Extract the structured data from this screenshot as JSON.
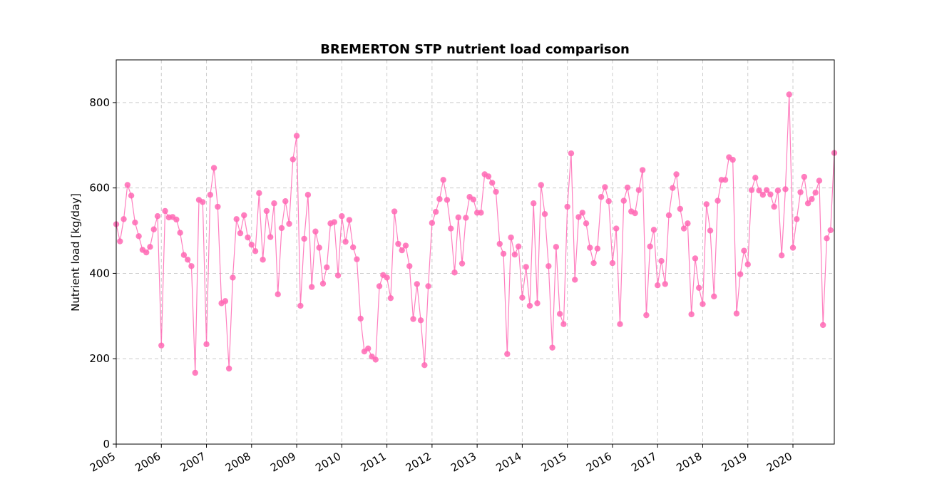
{
  "chart_data": {
    "type": "line",
    "title": "BREMERTON STP nutrient load comparison",
    "xlabel": "",
    "ylabel": "Nutrient load [kg/day]",
    "xlim": [
      "2005-01",
      "2020-12"
    ],
    "ylim": [
      0,
      900
    ],
    "yticks": [
      0,
      200,
      400,
      600,
      800
    ],
    "xticks": [
      "2005",
      "2006",
      "2007",
      "2008",
      "2009",
      "2010",
      "2011",
      "2012",
      "2013",
      "2014",
      "2015",
      "2016",
      "2017",
      "2018",
      "2019",
      "2020"
    ],
    "grid": true,
    "markers": true,
    "series": [
      {
        "color": "#ff69b4",
        "x": [
          "2005-01",
          "2005-02",
          "2005-03",
          "2005-04",
          "2005-05",
          "2005-06",
          "2005-07",
          "2005-08",
          "2005-09",
          "2005-10",
          "2005-11",
          "2005-12",
          "2006-01",
          "2006-02",
          "2006-03",
          "2006-04",
          "2006-05",
          "2006-06",
          "2006-07",
          "2006-08",
          "2006-09",
          "2006-10",
          "2006-11",
          "2006-12",
          "2007-01",
          "2007-02",
          "2007-03",
          "2007-04",
          "2007-05",
          "2007-06",
          "2007-07",
          "2007-08",
          "2007-09",
          "2007-10",
          "2007-11",
          "2007-12",
          "2008-01",
          "2008-02",
          "2008-03",
          "2008-04",
          "2008-05",
          "2008-06",
          "2008-07",
          "2008-08",
          "2008-09",
          "2008-10",
          "2008-11",
          "2008-12",
          "2009-01",
          "2009-02",
          "2009-03",
          "2009-04",
          "2009-05",
          "2009-06",
          "2009-07",
          "2009-08",
          "2009-09",
          "2009-10",
          "2009-11",
          "2009-12",
          "2010-01",
          "2010-02",
          "2010-03",
          "2010-04",
          "2010-05",
          "2010-06",
          "2010-07",
          "2010-08",
          "2010-09",
          "2010-10",
          "2010-11",
          "2010-12",
          "2011-01",
          "2011-02",
          "2011-03",
          "2011-04",
          "2011-05",
          "2011-06",
          "2011-07",
          "2011-08",
          "2011-09",
          "2011-10",
          "2011-11",
          "2011-12",
          "2012-01",
          "2012-02",
          "2012-03",
          "2012-04",
          "2012-05",
          "2012-06",
          "2012-07",
          "2012-08",
          "2012-09",
          "2012-10",
          "2012-11",
          "2012-12",
          "2013-01",
          "2013-02",
          "2013-03",
          "2013-04",
          "2013-05",
          "2013-06",
          "2013-07",
          "2013-08",
          "2013-09",
          "2013-10",
          "2013-11",
          "2013-12",
          "2014-01",
          "2014-02",
          "2014-03",
          "2014-04",
          "2014-05",
          "2014-06",
          "2014-07",
          "2014-08",
          "2014-09",
          "2014-10",
          "2014-11",
          "2014-12",
          "2015-01",
          "2015-02",
          "2015-03",
          "2015-04",
          "2015-05",
          "2015-06",
          "2015-07",
          "2015-08",
          "2015-09",
          "2015-10",
          "2015-11",
          "2015-12",
          "2016-01",
          "2016-02",
          "2016-03",
          "2016-04",
          "2016-05",
          "2016-06",
          "2016-07",
          "2016-08",
          "2016-09",
          "2016-10",
          "2016-11",
          "2016-12",
          "2017-01",
          "2017-02",
          "2017-03",
          "2017-04",
          "2017-05",
          "2017-06",
          "2017-07",
          "2017-08",
          "2017-09",
          "2017-10",
          "2017-11",
          "2017-12",
          "2018-01",
          "2018-02",
          "2018-03",
          "2018-04",
          "2018-05",
          "2018-06",
          "2018-07",
          "2018-08",
          "2018-09",
          "2018-10",
          "2018-11",
          "2018-12",
          "2019-01",
          "2019-02",
          "2019-03",
          "2019-04",
          "2019-05",
          "2019-06",
          "2019-07",
          "2019-08",
          "2019-09",
          "2019-10",
          "2019-11",
          "2019-12",
          "2020-01",
          "2020-02",
          "2020-03",
          "2020-04",
          "2020-05",
          "2020-06",
          "2020-07",
          "2020-08",
          "2020-09",
          "2020-10",
          "2020-11",
          "2020-12"
        ],
        "y": [
          515,
          475,
          527,
          607,
          582,
          519,
          487,
          455,
          449,
          462,
          503,
          534,
          231,
          546,
          531,
          532,
          526,
          495,
          443,
          432,
          417,
          167,
          572,
          567,
          234,
          584,
          647,
          556,
          330,
          335,
          177,
          390,
          527,
          494,
          536,
          484,
          467,
          452,
          588,
          432,
          546,
          485,
          564,
          351,
          506,
          569,
          516,
          667,
          722,
          324,
          481,
          584,
          368,
          498,
          460,
          376,
          414,
          517,
          520,
          395,
          534,
          474,
          525,
          461,
          433,
          294,
          217,
          224,
          205,
          198,
          370,
          396,
          390,
          342,
          545,
          469,
          454,
          465,
          417,
          293,
          375,
          290,
          185,
          370,
          518,
          544,
          574,
          619,
          572,
          505,
          402,
          531,
          423,
          530,
          579,
          573,
          542,
          542,
          632,
          627,
          612,
          591,
          469,
          446,
          211,
          484,
          444,
          463,
          343,
          415,
          324,
          564,
          330,
          607,
          539,
          417,
          226,
          462,
          305,
          281,
          556,
          681,
          385,
          532,
          542,
          517,
          460,
          424,
          458,
          579,
          602,
          569,
          424,
          505,
          281,
          570,
          601,
          545,
          541,
          595,
          642,
          302,
          463,
          502,
          372,
          429,
          375,
          536,
          600,
          632,
          551,
          505,
          517,
          304,
          435,
          366,
          328,
          562,
          500,
          346,
          570,
          619,
          619,
          672,
          666,
          306,
          398,
          453,
          421,
          595,
          624,
          594,
          584,
          595,
          585,
          556,
          594,
          442,
          597,
          819,
          460,
          527,
          590,
          626,
          564,
          574,
          589,
          617,
          279,
          482,
          501,
          682
        ]
      }
    ]
  }
}
